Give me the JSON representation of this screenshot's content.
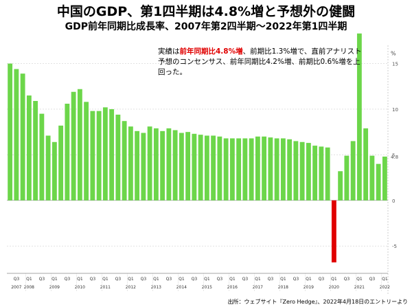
{
  "header": {
    "title": "中国のGDP、第1四半期は4.8%増と予想外の健闘",
    "subtitle": "GDP前年同期比成長率、2007年第2四半期～2022年第1四半期"
  },
  "annotation": {
    "pre": "実績は",
    "highlight": "前年同期比4.8%増",
    "post": "、前期比1.3%増で、直前アナリスト予想のコンセンサス、前年同期比4.2%増、前期比0.6%増を上回った。"
  },
  "source": "出所：ウェブサイト『Zero Hedge』、2022年4月18日のエントリーより",
  "chart_data": {
    "type": "bar",
    "unit_label": "%",
    "last_value_label": "4.8",
    "ylim": [
      -8,
      17
    ],
    "yticks": [
      -5,
      0,
      5,
      10,
      15
    ],
    "colors": {
      "positive": "#6cd64a",
      "negative": "#e00000"
    },
    "quarter_labels": [
      "Q3",
      "Q1",
      "Q3",
      "Q1",
      "Q3",
      "Q1",
      "Q3",
      "Q1",
      "Q3",
      "Q1",
      "Q3",
      "Q1",
      "Q3",
      "Q1",
      "Q3",
      "Q1",
      "Q3",
      "Q1",
      "Q3",
      "Q1",
      "Q3",
      "Q1",
      "Q3",
      "Q1",
      "Q3",
      "Q1",
      "Q3",
      "Q1",
      "Q3",
      "Q1"
    ],
    "years": [
      "2007",
      "2008",
      "2009",
      "2010",
      "2011",
      "2012",
      "2013",
      "2014",
      "2015",
      "2016",
      "2017",
      "2018",
      "2019",
      "2020",
      "2021",
      "2022"
    ],
    "categories": [
      "2007Q2",
      "2007Q3",
      "2007Q4",
      "2008Q1",
      "2008Q2",
      "2008Q3",
      "2008Q4",
      "2009Q1",
      "2009Q2",
      "2009Q3",
      "2009Q4",
      "2010Q1",
      "2010Q2",
      "2010Q3",
      "2010Q4",
      "2011Q1",
      "2011Q2",
      "2011Q3",
      "2011Q4",
      "2012Q1",
      "2012Q2",
      "2012Q3",
      "2012Q4",
      "2013Q1",
      "2013Q2",
      "2013Q3",
      "2013Q4",
      "2014Q1",
      "2014Q2",
      "2014Q3",
      "2014Q4",
      "2015Q1",
      "2015Q2",
      "2015Q3",
      "2015Q4",
      "2016Q1",
      "2016Q2",
      "2016Q3",
      "2016Q4",
      "2017Q1",
      "2017Q2",
      "2017Q3",
      "2017Q4",
      "2018Q1",
      "2018Q2",
      "2018Q3",
      "2018Q4",
      "2019Q1",
      "2019Q2",
      "2019Q3",
      "2019Q4",
      "2020Q1",
      "2020Q2",
      "2020Q3",
      "2020Q4",
      "2021Q1",
      "2021Q2",
      "2021Q3",
      "2021Q4",
      "2022Q1"
    ],
    "values": [
      15.0,
      14.4,
      13.9,
      11.5,
      10.9,
      9.5,
      7.1,
      6.4,
      8.2,
      10.6,
      11.9,
      12.2,
      10.8,
      9.8,
      9.8,
      10.2,
      10.0,
      9.4,
      8.7,
      8.1,
      7.6,
      7.4,
      8.1,
      7.9,
      7.6,
      7.9,
      7.7,
      7.4,
      7.5,
      7.3,
      7.2,
      7.1,
      7.1,
      7.0,
      6.8,
      6.8,
      6.8,
      6.8,
      6.8,
      7.0,
      7.0,
      6.9,
      6.8,
      6.8,
      6.7,
      6.5,
      6.4,
      6.3,
      6.0,
      5.9,
      5.8,
      -6.8,
      3.2,
      4.9,
      6.5,
      18.3,
      7.9,
      4.9,
      4.0,
      4.8
    ]
  }
}
